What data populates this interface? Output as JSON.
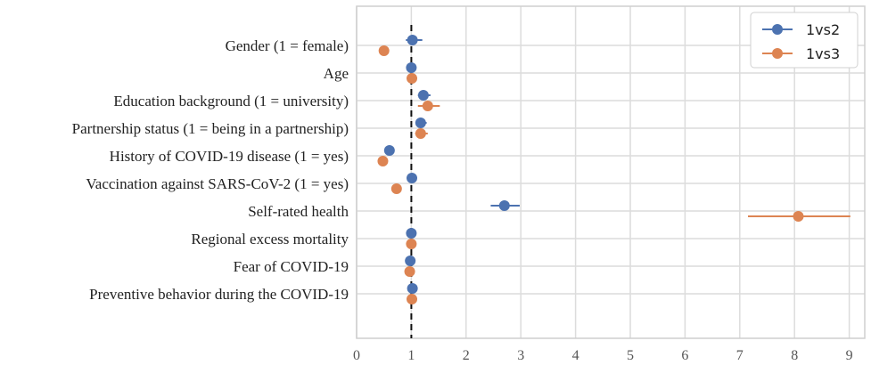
{
  "chart_data": {
    "type": "scatter",
    "categories": [
      "Gender (1 = female)",
      "Age",
      "Education background (1 = university)",
      "Partnership status (1 = being in a partnership)",
      "History of COVID-19 disease (1 = yes)",
      "Vaccination against SARS-CoV-2 (1 = yes)",
      "Self-rated health",
      "Regional excess mortality",
      "Fear of COVID-19",
      "Preventive behavior during the COVID-19"
    ],
    "series": [
      {
        "name": "1vs2",
        "color": "#4C72B0",
        "values": [
          1.02,
          1.0,
          1.22,
          1.17,
          0.6,
          1.01,
          2.7,
          1.0,
          0.98,
          1.02
        ],
        "ci_low": [
          0.9,
          0.98,
          1.12,
          1.1,
          0.56,
          0.96,
          2.45,
          0.98,
          0.95,
          0.98
        ],
        "ci_high": [
          1.2,
          1.02,
          1.35,
          1.28,
          0.65,
          1.08,
          2.98,
          1.02,
          1.01,
          1.06
        ]
      },
      {
        "name": "1vs3",
        "color": "#DD8452",
        "values": [
          0.5,
          1.01,
          1.3,
          1.17,
          0.48,
          0.73,
          8.07,
          1.0,
          0.97,
          1.01
        ],
        "ci_low": [
          0.46,
          0.99,
          1.12,
          1.07,
          0.44,
          0.68,
          7.15,
          0.98,
          0.93,
          0.97
        ],
        "ci_high": [
          0.54,
          1.03,
          1.52,
          1.3,
          0.53,
          0.78,
          9.02,
          1.02,
          1.01,
          1.05
        ]
      }
    ],
    "xticks": [
      "0",
      "1",
      "2",
      "3",
      "4",
      "5",
      "6",
      "7",
      "8",
      "9"
    ],
    "xlim": [
      0,
      9.3
    ],
    "reference_line": 1,
    "grid": true,
    "legend_position": "top-right"
  }
}
